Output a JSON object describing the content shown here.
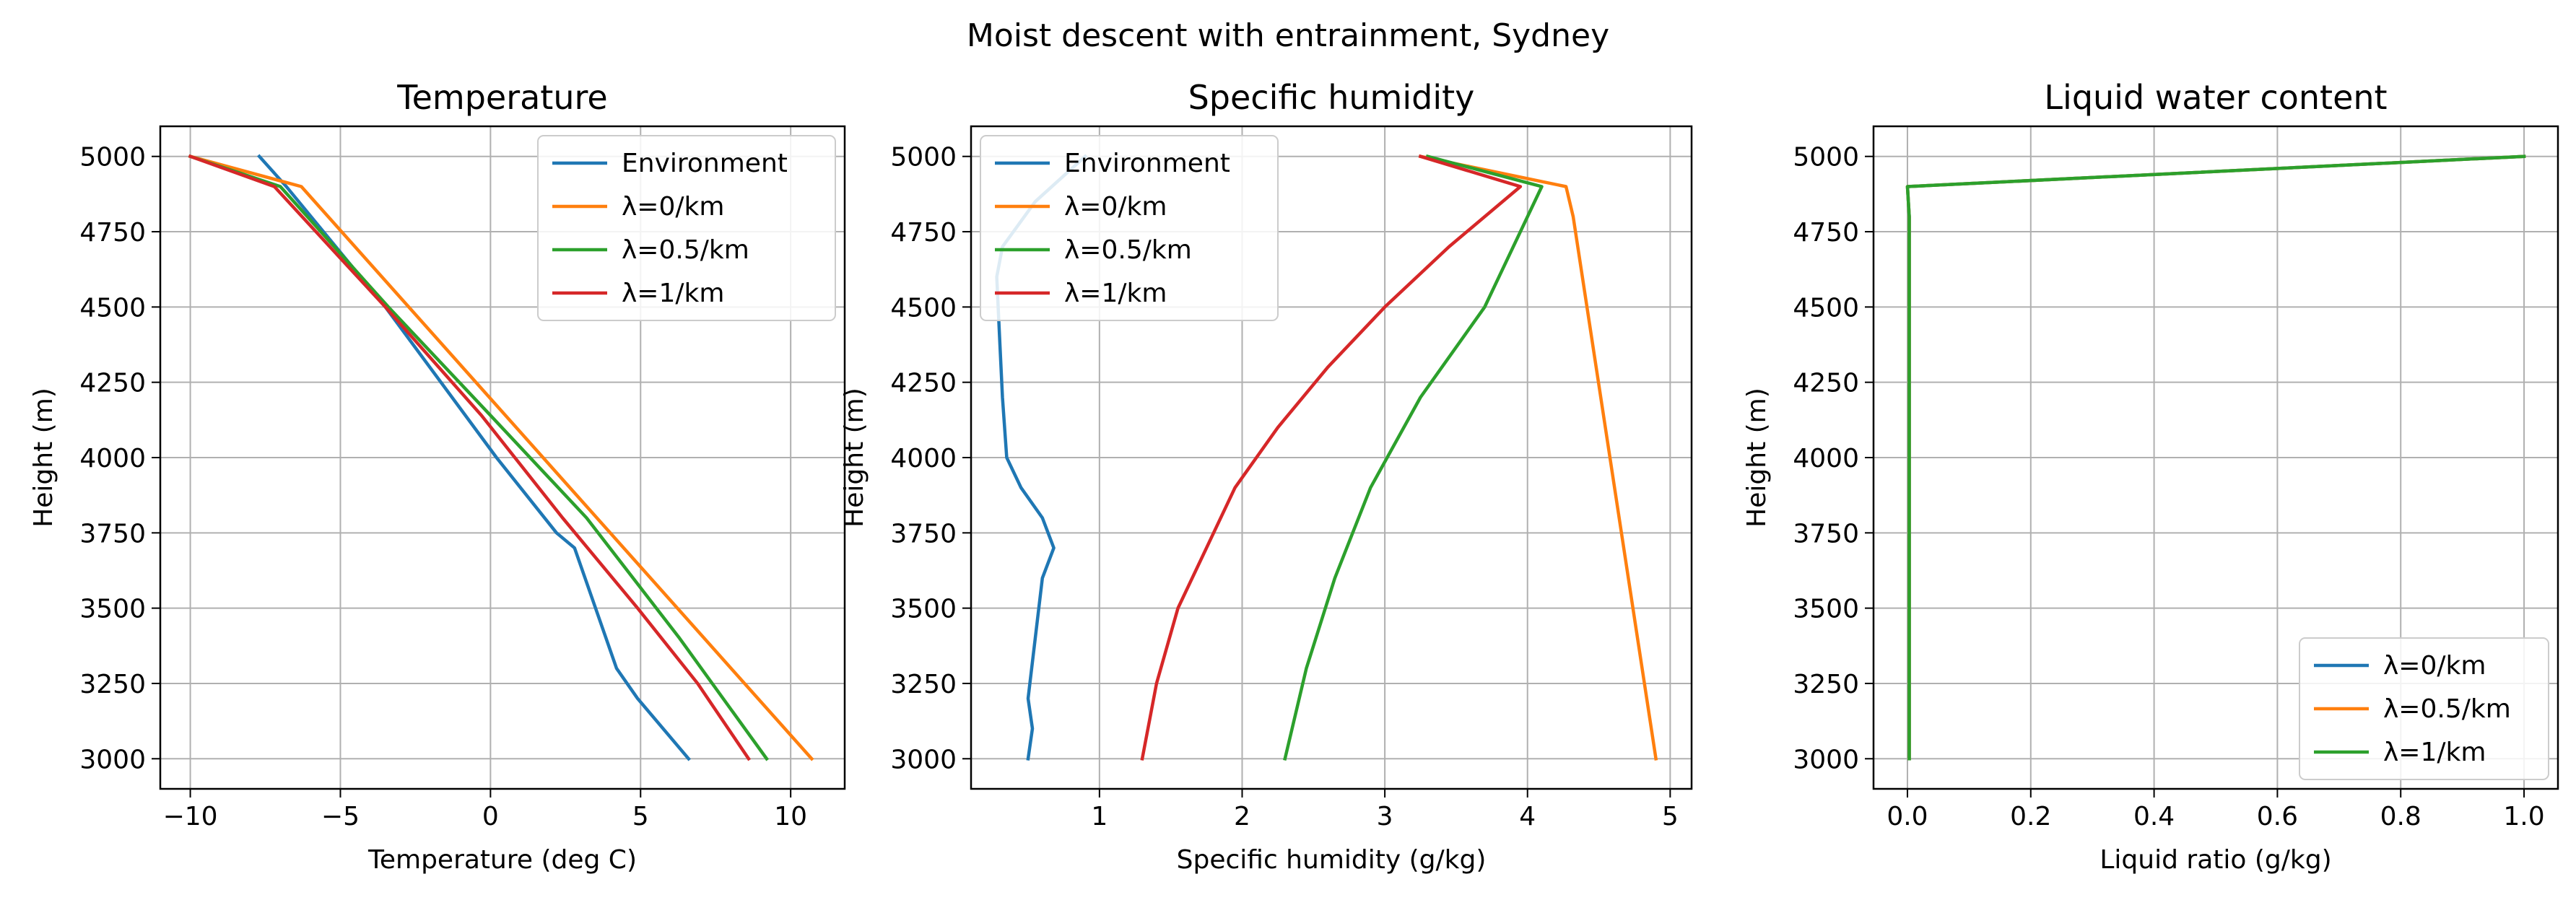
{
  "figure": {
    "suptitle": "Moist descent with entrainment, Sydney"
  },
  "chart_data": [
    {
      "type": "line",
      "title": "Temperature",
      "xlabel": "Temperature (deg C)",
      "ylabel": "Height (m)",
      "xlim": [
        -11.0,
        11.8
      ],
      "ylim": [
        2900,
        5100
      ],
      "xticks": [
        -10,
        -5,
        0,
        5,
        10
      ],
      "yticks": [
        3000,
        3250,
        3500,
        3750,
        4000,
        4250,
        4500,
        4750,
        5000
      ],
      "grid": true,
      "legend": "top-right",
      "series": [
        {
          "name": "Environment",
          "color": "#1f77b4",
          "x": [
            -7.7,
            -6.8,
            -3.5,
            0.2,
            2.2,
            2.8,
            3.5,
            4.2,
            4.9,
            6.6
          ],
          "y": [
            5000,
            4900,
            4500,
            4000,
            3750,
            3700,
            3500,
            3300,
            3200,
            3000
          ]
        },
        {
          "name": "λ=0/km",
          "color": "#ff7f0e",
          "x": [
            -10.0,
            -6.3,
            10.7
          ],
          "y": [
            5000,
            4900,
            3000
          ]
        },
        {
          "name": "λ=0.5/km",
          "color": "#2ca02c",
          "x": [
            -10.0,
            -7.0,
            -3.4,
            0.0,
            3.2,
            6.3,
            9.2
          ],
          "y": [
            5000,
            4900,
            4500,
            4140,
            3800,
            3400,
            3000
          ]
        },
        {
          "name": "λ=1/km",
          "color": "#d62728",
          "x": [
            -10.0,
            -7.2,
            -3.5,
            -0.3,
            2.4,
            4.9,
            6.9,
            8.6
          ],
          "y": [
            5000,
            4900,
            4500,
            4140,
            3800,
            3500,
            3250,
            3000
          ]
        }
      ]
    },
    {
      "type": "line",
      "title": "Specific humidity",
      "xlabel": "Specific humidity (g/kg)",
      "ylabel": "Height (m)",
      "xlim": [
        0.1,
        5.15
      ],
      "ylim": [
        2900,
        5100
      ],
      "xticks": [
        1,
        2,
        3,
        4,
        5
      ],
      "yticks": [
        3000,
        3250,
        3500,
        3750,
        4000,
        4250,
        4500,
        4750,
        5000
      ],
      "grid": true,
      "legend": "top-left",
      "series": [
        {
          "name": "Environment",
          "color": "#1f77b4",
          "x": [
            0.9,
            0.55,
            0.32,
            0.28,
            0.3,
            0.32,
            0.35,
            0.45,
            0.6,
            0.68,
            0.6,
            0.55,
            0.5,
            0.53,
            0.5
          ],
          "y": [
            5000,
            4850,
            4700,
            4600,
            4400,
            4200,
            4000,
            3900,
            3800,
            3700,
            3600,
            3400,
            3200,
            3100,
            3000
          ]
        },
        {
          "name": "λ=0/km",
          "color": "#ff7f0e",
          "x": [
            3.25,
            4.27,
            4.32,
            4.9
          ],
          "y": [
            5000,
            4900,
            4800,
            3000
          ]
        },
        {
          "name": "λ=0.5/km",
          "color": "#2ca02c",
          "x": [
            3.3,
            4.1,
            3.7,
            3.25,
            2.9,
            2.65,
            2.45,
            2.3
          ],
          "y": [
            5000,
            4900,
            4500,
            4200,
            3900,
            3600,
            3300,
            3000
          ]
        },
        {
          "name": "λ=1/km",
          "color": "#d62728",
          "x": [
            3.25,
            3.95,
            3.45,
            3.0,
            2.6,
            2.25,
            1.95,
            1.75,
            1.55,
            1.4,
            1.3
          ],
          "y": [
            5000,
            4900,
            4700,
            4500,
            4300,
            4100,
            3900,
            3700,
            3500,
            3250,
            3000
          ]
        }
      ]
    },
    {
      "type": "line",
      "title": "Liquid water content",
      "xlabel": "Liquid ratio (g/kg)",
      "ylabel": "Height (m)",
      "xlim": [
        -0.055,
        1.055
      ],
      "ylim": [
        2900,
        5100
      ],
      "xticks": [
        0.0,
        0.2,
        0.4,
        0.6,
        0.8,
        1.0
      ],
      "yticks": [
        3000,
        3250,
        3500,
        3750,
        4000,
        4250,
        4500,
        4750,
        5000
      ],
      "grid": true,
      "legend": "bottom-right",
      "series": [
        {
          "name": "λ=0/km",
          "color": "#1f77b4",
          "x": [
            1.0,
            0.0,
            0.003,
            0.003
          ],
          "y": [
            5000,
            4900,
            4800,
            3000
          ]
        },
        {
          "name": "λ=0.5/km",
          "color": "#ff7f0e",
          "x": [
            1.0,
            0.0,
            0.003,
            0.003
          ],
          "y": [
            5000,
            4900,
            4800,
            3000
          ]
        },
        {
          "name": "λ=1/km",
          "color": "#2ca02c",
          "x": [
            1.0,
            0.0,
            0.003,
            0.003
          ],
          "y": [
            5000,
            4900,
            4800,
            3000
          ]
        }
      ]
    }
  ]
}
